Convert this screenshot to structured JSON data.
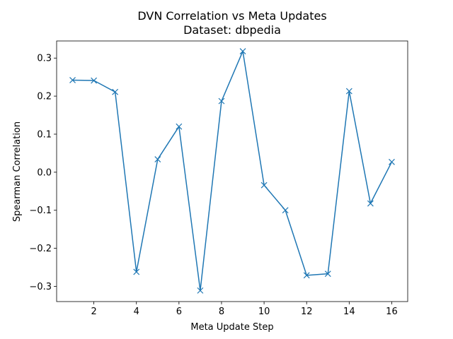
{
  "chart_data": {
    "type": "line",
    "title": "DVN Correlation vs Meta Updates",
    "subtitle": "Dataset: dbpedia",
    "xlabel": "Meta Update Step",
    "ylabel": "Spearman Correlation",
    "xlim": [
      0.25,
      16.75
    ],
    "ylim": [
      -0.34,
      0.345
    ],
    "xticks": [
      2,
      4,
      6,
      8,
      10,
      12,
      14,
      16
    ],
    "xtick_labels": [
      "2",
      "4",
      "6",
      "8",
      "10",
      "12",
      "14",
      "16"
    ],
    "yticks": [
      -0.3,
      -0.2,
      -0.1,
      0.0,
      0.1,
      0.2,
      0.3
    ],
    "ytick_labels": [
      "−0.3",
      "−0.2",
      "−0.1",
      "0.0",
      "0.1",
      "0.2",
      "0.3"
    ],
    "grid": false,
    "marker": "x",
    "series": [
      {
        "color": "#1f77b4",
        "x": [
          1,
          2,
          3,
          4,
          5,
          6,
          7,
          8,
          9,
          10,
          11,
          12,
          13,
          14,
          15,
          16
        ],
        "y": [
          0.242,
          0.241,
          0.211,
          -0.262,
          0.034,
          0.12,
          -0.311,
          0.187,
          0.318,
          -0.034,
          -0.1,
          -0.271,
          -0.267,
          0.213,
          -0.082,
          0.027
        ]
      }
    ]
  }
}
